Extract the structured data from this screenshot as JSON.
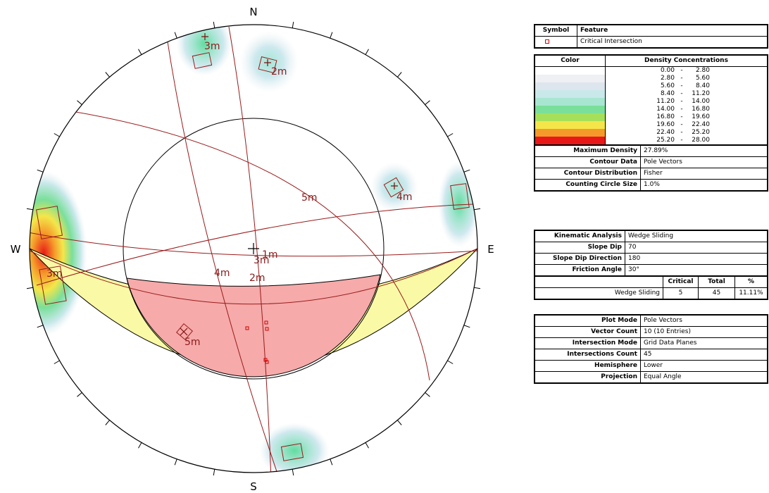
{
  "stereonet": {
    "compass": {
      "north": "N",
      "south": "S",
      "east": "E",
      "west": "W"
    },
    "set_labels": [
      "3m",
      "2m",
      "4m",
      "5m",
      "1m",
      "3m",
      "4m",
      "2m",
      "5m",
      "3m",
      "1m"
    ]
  },
  "legend": {
    "feature_header": {
      "symbol": "Symbol",
      "feature": "Feature"
    },
    "feature_row": {
      "feature": "Critical Intersection",
      "symbol_color": "#d00000"
    },
    "density": {
      "color_header": "Color",
      "title": "Density Concentrations",
      "ranges": [
        {
          "from": "0.00",
          "sep": "-",
          "to": "2.80",
          "color": "#ffffff"
        },
        {
          "from": "2.80",
          "sep": "-",
          "to": "5.60",
          "color": "#eef0f4"
        },
        {
          "from": "5.60",
          "sep": "-",
          "to": "8.40",
          "color": "#dde6ee"
        },
        {
          "from": "8.40",
          "sep": "-",
          "to": "11.20",
          "color": "#c8e8ea"
        },
        {
          "from": "11.20",
          "sep": "-",
          "to": "14.00",
          "color": "#a8e6d2"
        },
        {
          "from": "14.00",
          "sep": "-",
          "to": "16.80",
          "color": "#7adf9a"
        },
        {
          "from": "16.80",
          "sep": "-",
          "to": "19.60",
          "color": "#a6e05a"
        },
        {
          "from": "19.60",
          "sep": "-",
          "to": "22.40",
          "color": "#f4e64a"
        },
        {
          "from": "22.40",
          "sep": "-",
          "to": "25.20",
          "color": "#f59a2a"
        },
        {
          "from": "25.20",
          "sep": "-",
          "to": "28.00",
          "color": "#e81818"
        }
      ]
    },
    "contour_info": [
      {
        "label": "Maximum Density",
        "value": "27.89%"
      },
      {
        "label": "Contour Data",
        "value": "Pole Vectors"
      },
      {
        "label": "Contour Distribution",
        "value": "Fisher"
      },
      {
        "label": "Counting Circle Size",
        "value": "1.0%"
      }
    ],
    "kinematic": [
      {
        "label": "Kinematic Analysis",
        "value": "Wedge Sliding"
      },
      {
        "label": "Slope Dip",
        "value": "70"
      },
      {
        "label": "Slope Dip Direction",
        "value": "180"
      },
      {
        "label": "Friction Angle",
        "value": "30°"
      }
    ],
    "result_headers": {
      "critical": "Critical",
      "total": "Total",
      "percent": "%"
    },
    "result_row": {
      "label": "Wedge Sliding",
      "critical": "5",
      "total": "45",
      "percent": "11.11%"
    },
    "plot_info": [
      {
        "label": "Plot Mode",
        "value": "Pole Vectors"
      },
      {
        "label": "Vector Count",
        "value": "10 (10 Entries)"
      },
      {
        "label": "Intersection Mode",
        "value": "Grid Data Planes"
      },
      {
        "label": "Intersections Count",
        "value": "45"
      },
      {
        "label": "Hemisphere",
        "value": "Lower"
      },
      {
        "label": "Projection",
        "value": "Equal Angle"
      }
    ]
  }
}
